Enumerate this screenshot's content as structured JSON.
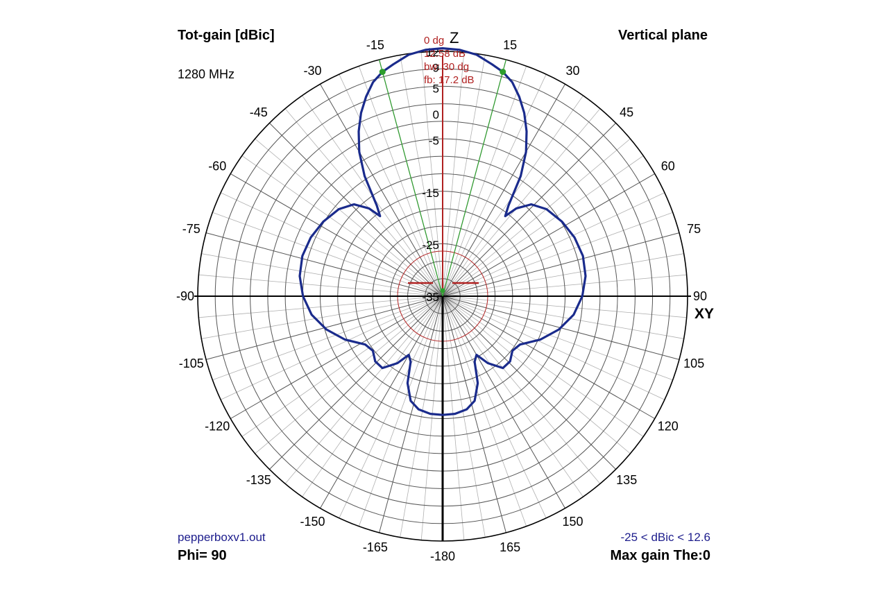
{
  "header": {
    "left_title": "Tot-gain [dBic]",
    "frequency": "1280 MHz",
    "right_title": "Vertical plane"
  },
  "footer": {
    "file_name": "pepperboxv1.out",
    "phi_label": "Phi= 90",
    "range_label": "-25 < dBic < 12.6",
    "max_gain_label": "Max gain The:0"
  },
  "axis_labels": {
    "top": "Z",
    "right": "XY"
  },
  "info_box": {
    "lines": [
      "0 dg",
      "12.58 dB",
      "bw: 30 dg",
      "fb: 17.2 dB"
    ],
    "color": "#b02020"
  },
  "colors": {
    "pattern": "#1a2b8c",
    "grid": "#555555",
    "minor_grid": "#b0b0b0",
    "beamwidth": "#2e9e2e",
    "marker": "#b02020",
    "axis": "#000000"
  },
  "chart_data": {
    "type": "polar",
    "angle_unit": "degrees",
    "angle_zero": "top",
    "radial_unit": "dBic",
    "radial_range": [
      -35,
      12
    ],
    "radial_rings": [
      12,
      9,
      5,
      0,
      -5,
      -15,
      -25,
      -35
    ],
    "angle_ticks_right": [
      "15",
      "30",
      "45",
      "60",
      "75",
      "90",
      "105",
      "120",
      "135",
      "150",
      "165"
    ],
    "angle_ticks_left": [
      "-15",
      "-30",
      "-45",
      "-60",
      "-75",
      "-90",
      "-105",
      "-120",
      "-135",
      "-150",
      "-165",
      "-180"
    ],
    "beamwidth_deg": [
      -15,
      15
    ],
    "max_gain_dB": 12.58,
    "series": [
      {
        "values": [
          {
            "theta": 0,
            "gain": 12.58
          },
          {
            "theta": 4,
            "gain": 12.4
          },
          {
            "theta": 8,
            "gain": 11.8
          },
          {
            "theta": 12,
            "gain": 10.5
          },
          {
            "theta": 15,
            "gain": 9.58
          },
          {
            "theta": 18,
            "gain": 8.2
          },
          {
            "theta": 21,
            "gain": 6.0
          },
          {
            "theta": 24,
            "gain": 3.5
          },
          {
            "theta": 27,
            "gain": 0.5
          },
          {
            "theta": 30,
            "gain": -3.0
          },
          {
            "theta": 33,
            "gain": -7.5
          },
          {
            "theta": 36,
            "gain": -13.5
          },
          {
            "theta": 38,
            "gain": -15.5
          },
          {
            "theta": 40,
            "gain": -13.0
          },
          {
            "theta": 44,
            "gain": -10.5
          },
          {
            "theta": 50,
            "gain": -9.0
          },
          {
            "theta": 58,
            "gain": -8.0
          },
          {
            "theta": 66,
            "gain": -7.3
          },
          {
            "theta": 74,
            "gain": -7.0
          },
          {
            "theta": 82,
            "gain": -7.3
          },
          {
            "theta": 90,
            "gain": -8.2
          },
          {
            "theta": 98,
            "gain": -9.6
          },
          {
            "theta": 106,
            "gain": -11.8
          },
          {
            "theta": 114,
            "gain": -14.5
          },
          {
            "theta": 122,
            "gain": -17.5
          },
          {
            "theta": 128,
            "gain": -18.0
          },
          {
            "theta": 134,
            "gain": -17.0
          },
          {
            "theta": 140,
            "gain": -17.0
          },
          {
            "theta": 146,
            "gain": -19.5
          },
          {
            "theta": 150,
            "gain": -22.0
          },
          {
            "theta": 154,
            "gain": -21.0
          },
          {
            "theta": 158,
            "gain": -17.0
          },
          {
            "theta": 163,
            "gain": -14.0
          },
          {
            "theta": 168,
            "gain": -12.8
          },
          {
            "theta": 174,
            "gain": -12.3
          },
          {
            "theta": 180,
            "gain": -12.2
          }
        ]
      }
    ]
  }
}
